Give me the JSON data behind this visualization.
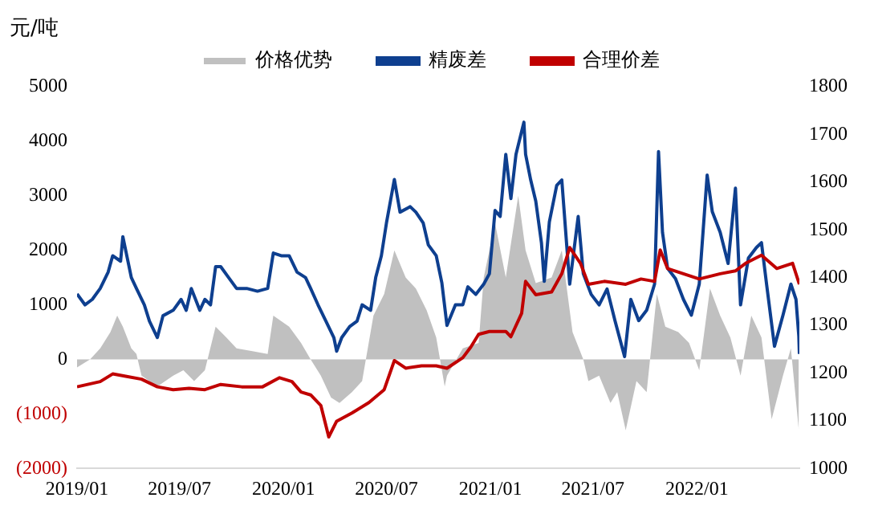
{
  "chart_data": {
    "type": "line",
    "ylabel": "元/吨",
    "legend": "top",
    "grid": false,
    "xlim": [
      "2019-01-01",
      "2022-07-01"
    ],
    "xticks": [
      {
        "value": "2019-01-01",
        "label": "2019/01"
      },
      {
        "value": "2019-07-01",
        "label": "2019/07"
      },
      {
        "value": "2020-01-01",
        "label": "2020/01"
      },
      {
        "value": "2020-07-01",
        "label": "2020/07"
      },
      {
        "value": "2021-01-01",
        "label": "2021/01"
      },
      {
        "value": "2021-07-01",
        "label": "2021/07"
      },
      {
        "value": "2022-01-01",
        "label": "2022/01"
      }
    ],
    "ylim": [
      -2000,
      5000
    ],
    "yticks": [
      {
        "value": -2000,
        "label": "(2000)"
      },
      {
        "value": -1000,
        "label": "(1000)"
      },
      0,
      1000,
      2000,
      3000,
      4000,
      5000
    ],
    "y2lim": [
      1000,
      1800
    ],
    "y2ticks": [
      1000,
      1100,
      1200,
      1300,
      1400,
      1500,
      1600,
      1700,
      1800
    ],
    "series": [
      {
        "name": "价格优势",
        "type": "area",
        "color": "#c0c0c0",
        "x": [
          "2019-01-01",
          "2019-01-24",
          "2019-02-11",
          "2019-03-01",
          "2019-03-13",
          "2019-03-23",
          "2019-04-07",
          "2019-04-16",
          "2019-04-25",
          "2019-05-23",
          "2019-06-20",
          "2019-07-08",
          "2019-07-27",
          "2019-08-15",
          "2019-09-03",
          "2019-09-22",
          "2019-10-10",
          "2019-11-07",
          "2019-12-04",
          "2019-12-14",
          "2020-01-11",
          "2020-02-01",
          "2020-02-18",
          "2020-03-07",
          "2020-03-25",
          "2020-04-09",
          "2020-05-01",
          "2020-05-19",
          "2020-06-08",
          "2020-06-27",
          "2020-07-15",
          "2020-08-04",
          "2020-08-22",
          "2020-09-10",
          "2020-09-27",
          "2020-10-12",
          "2020-10-16",
          "2020-11-13",
          "2020-12-11",
          "2020-12-20",
          "2021-01-09",
          "2021-01-28",
          "2021-02-19",
          "2021-03-04",
          "2021-03-22",
          "2021-04-19",
          "2021-05-07",
          "2021-05-26",
          "2021-06-14",
          "2021-06-23",
          "2021-07-12",
          "2021-08-01",
          "2021-08-13",
          "2021-08-28",
          "2021-09-16",
          "2021-10-04",
          "2021-10-22",
          "2021-11-06",
          "2021-11-29",
          "2021-12-18",
          "2022-01-05",
          "2022-01-24",
          "2022-02-11",
          "2022-03-01",
          "2022-03-19",
          "2022-04-07",
          "2022-04-25",
          "2022-05-13",
          "2022-06-02",
          "2022-06-16",
          "2022-06-30"
        ],
        "values": [
          -150,
          0,
          200,
          500,
          800,
          600,
          200,
          100,
          -300,
          -500,
          -300,
          -200,
          -400,
          -200,
          600,
          400,
          200,
          150,
          100,
          800,
          600,
          300,
          0,
          -300,
          -700,
          -800,
          -600,
          -400,
          800,
          1200,
          2000,
          1500,
          1300,
          900,
          400,
          -500,
          -300,
          200,
          300,
          1500,
          2500,
          1500,
          3000,
          2000,
          1400,
          1500,
          2000,
          500,
          0,
          -400,
          -300,
          -800,
          -600,
          -1300,
          -400,
          -600,
          1200,
          600,
          500,
          300,
          -200,
          1300,
          800,
          400,
          -300,
          800,
          400,
          -1100,
          -300,
          200,
          -1300
        ]
      },
      {
        "name": "精废差",
        "color": "#0e3f8f",
        "x": [
          "2019-01-01",
          "2019-01-15",
          "2019-01-28",
          "2019-02-11",
          "2019-02-25",
          "2019-03-05",
          "2019-03-19",
          "2019-03-23",
          "2019-04-07",
          "2019-04-16",
          "2019-04-30",
          "2019-05-09",
          "2019-05-23",
          "2019-06-02",
          "2019-06-20",
          "2019-07-04",
          "2019-07-13",
          "2019-07-22",
          "2019-08-06",
          "2019-08-15",
          "2019-08-25",
          "2019-09-03",
          "2019-09-12",
          "2019-09-26",
          "2019-10-10",
          "2019-10-28",
          "2019-11-16",
          "2019-12-04",
          "2019-12-14",
          "2019-12-28",
          "2020-01-11",
          "2020-01-25",
          "2020-02-09",
          "2020-02-18",
          "2020-03-02",
          "2020-03-16",
          "2020-03-30",
          "2020-04-04",
          "2020-04-13",
          "2020-04-27",
          "2020-05-10",
          "2020-05-19",
          "2020-06-03",
          "2020-06-12",
          "2020-06-22",
          "2020-07-01",
          "2020-07-15",
          "2020-07-25",
          "2020-08-12",
          "2020-08-22",
          "2020-09-04",
          "2020-09-13",
          "2020-09-27",
          "2020-10-07",
          "2020-10-16",
          "2020-10-31",
          "2020-11-13",
          "2020-11-22",
          "2020-12-06",
          "2020-12-20",
          "2020-12-30",
          "2021-01-09",
          "2021-01-18",
          "2021-01-28",
          "2021-02-06",
          "2021-02-15",
          "2021-03-01",
          "2021-03-04",
          "2021-03-13",
          "2021-03-22",
          "2021-04-01",
          "2021-04-06",
          "2021-04-15",
          "2021-04-28",
          "2021-05-07",
          "2021-05-16",
          "2021-05-21",
          "2021-06-05",
          "2021-06-14",
          "2021-06-28",
          "2021-07-12",
          "2021-07-26",
          "2021-08-09",
          "2021-08-26",
          "2021-09-06",
          "2021-09-20",
          "2021-10-04",
          "2021-10-18",
          "2021-10-25",
          "2021-11-01",
          "2021-11-10",
          "2021-11-24",
          "2021-12-08",
          "2021-12-22",
          "2022-01-05",
          "2022-01-19",
          "2022-01-28",
          "2022-02-11",
          "2022-02-25",
          "2022-03-10",
          "2022-03-19",
          "2022-04-02",
          "2022-04-16",
          "2022-04-25",
          "2022-05-04",
          "2022-05-18",
          "2022-06-02",
          "2022-06-16",
          "2022-06-25",
          "2022-06-30",
          "2022-07-01"
        ],
        "values": [
          1200,
          1000,
          1100,
          1300,
          1600,
          1900,
          1800,
          2250,
          1500,
          1300,
          1000,
          700,
          400,
          800,
          900,
          1100,
          900,
          1300,
          900,
          1100,
          1000,
          1700,
          1700,
          1500,
          1300,
          1300,
          1250,
          1300,
          1950,
          1900,
          1900,
          1600,
          1500,
          1300,
          1000,
          700,
          400,
          150,
          400,
          600,
          700,
          1000,
          900,
          1500,
          1900,
          2500,
          3300,
          2700,
          2800,
          2700,
          2500,
          2100,
          1900,
          1400,
          620,
          1000,
          1000,
          1330,
          1190,
          1380,
          1570,
          2730,
          2620,
          3760,
          2950,
          3760,
          4350,
          3760,
          3290,
          2900,
          2140,
          1430,
          2520,
          3190,
          3290,
          2050,
          1380,
          2620,
          1570,
          1190,
          1000,
          1290,
          710,
          50,
          1100,
          710,
          900,
          1380,
          3810,
          2330,
          1670,
          1480,
          1100,
          810,
          1380,
          3380,
          2710,
          2330,
          1760,
          3140,
          1000,
          1860,
          2050,
          2140,
          1380,
          240,
          810,
          1380,
          1100,
          430,
          100
        ]
      },
      {
        "name": "合理价差",
        "axis": "y2",
        "color": "#c00000",
        "x": [
          "2019-01-01",
          "2019-02-11",
          "2019-03-05",
          "2019-03-28",
          "2019-04-25",
          "2019-05-23",
          "2019-06-20",
          "2019-07-18",
          "2019-08-15",
          "2019-09-12",
          "2019-10-19",
          "2019-11-25",
          "2019-12-25",
          "2020-01-16",
          "2020-02-01",
          "2020-02-18",
          "2020-03-07",
          "2020-03-21",
          "2020-04-04",
          "2020-05-01",
          "2020-05-31",
          "2020-06-27",
          "2020-07-15",
          "2020-08-04",
          "2020-09-01",
          "2020-09-27",
          "2020-10-16",
          "2020-11-13",
          "2020-11-27",
          "2020-12-11",
          "2020-12-30",
          "2021-01-28",
          "2021-02-06",
          "2021-02-25",
          "2021-03-04",
          "2021-03-22",
          "2021-04-19",
          "2021-05-07",
          "2021-05-21",
          "2021-06-09",
          "2021-06-23",
          "2021-07-21",
          "2021-08-28",
          "2021-09-24",
          "2021-10-18",
          "2021-10-28",
          "2021-11-10",
          "2021-12-08",
          "2022-01-05",
          "2022-02-11",
          "2022-03-10",
          "2022-03-28",
          "2022-04-25",
          "2022-05-22",
          "2022-06-19",
          "2022-07-01"
        ],
        "values": [
          1171,
          1182,
          1198,
          1193,
          1187,
          1171,
          1165,
          1168,
          1165,
          1176,
          1171,
          1171,
          1190,
          1182,
          1160,
          1154,
          1132,
          1066,
          1099,
          1116,
          1138,
          1165,
          1226,
          1210,
          1215,
          1215,
          1210,
          1232,
          1254,
          1281,
          1287,
          1287,
          1276,
          1325,
          1392,
          1364,
          1370,
          1408,
          1463,
          1430,
          1386,
          1392,
          1386,
          1397,
          1392,
          1458,
          1419,
          1408,
          1397,
          1408,
          1414,
          1430,
          1447,
          1419,
          1430,
          1386
        ]
      }
    ]
  }
}
